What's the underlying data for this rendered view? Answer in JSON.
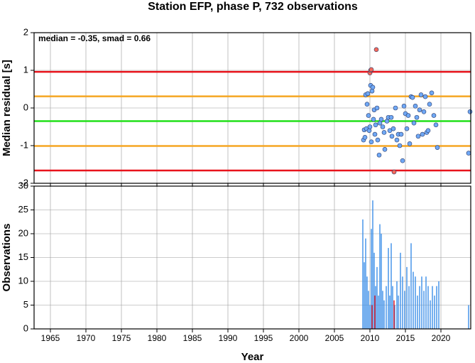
{
  "chart_data": [
    {
      "type": "scatter",
      "title": "Station EFP, phase P, 732 observations",
      "ylabel": "Median residual [s]",
      "annotation": "median = -0.35, smad = 0.66",
      "xlim": [
        1962.7,
        2024.2
      ],
      "xticks": [
        1965,
        1970,
        1975,
        1980,
        1985,
        1990,
        1995,
        2000,
        2005,
        2010,
        2015,
        2020
      ],
      "ylim": [
        -2,
        2
      ],
      "yticks": [
        -2,
        -1,
        0,
        1,
        2
      ],
      "grid": true,
      "hlines": [
        {
          "value": 0.96,
          "color": "#e8141c"
        },
        {
          "value": 0.31,
          "color": "#f5a623"
        },
        {
          "value": -0.35,
          "color": "#22e01a"
        },
        {
          "value": -1.01,
          "color": "#f5a623"
        },
        {
          "value": -1.66,
          "color": "#e8141c"
        }
      ],
      "series": [
        {
          "color": "#6fa8f5",
          "x": [
            2009.1,
            2009.2,
            2009.3,
            2009.4,
            2009.5,
            2009.6,
            2009.7,
            2009.8,
            2009.9,
            2010.0,
            2010.1,
            2010.2,
            2010.3,
            2010.4,
            2010.5,
            2010.6,
            2010.7,
            2010.8,
            2011.0,
            2011.1,
            2011.3,
            2011.4,
            2011.6,
            2011.8,
            2012.0,
            2012.1,
            2012.4,
            2012.6,
            2012.8,
            2013.0,
            2013.1,
            2013.3,
            2013.6,
            2013.8,
            2014.0,
            2014.2,
            2014.4,
            2014.6,
            2014.8,
            2015.0,
            2015.2,
            2015.4,
            2015.6,
            2015.8,
            2016.0,
            2016.2,
            2016.4,
            2016.6,
            2016.8,
            2017.0,
            2017.2,
            2017.4,
            2017.6,
            2017.8,
            2018.0,
            2018.2,
            2018.4,
            2018.7,
            2019.0,
            2019.3,
            2019.5,
            2023.9,
            2024.1
          ],
          "values": [
            -0.85,
            -0.58,
            -0.78,
            0.35,
            -0.55,
            0.1,
            0.38,
            -0.2,
            -0.6,
            -0.5,
            0.6,
            -0.9,
            0.45,
            0.55,
            -0.3,
            -0.05,
            -0.7,
            -0.45,
            0.0,
            -0.85,
            -1.25,
            -0.4,
            -0.3,
            -0.5,
            -0.65,
            -1.1,
            -0.35,
            -0.25,
            -0.6,
            -0.25,
            -0.75,
            -0.55,
            0.0,
            -0.85,
            -0.7,
            -1.0,
            -0.7,
            -1.4,
            0.05,
            -0.15,
            -0.55,
            -0.2,
            -0.95,
            0.3,
            0.28,
            -0.4,
            0.05,
            -0.25,
            -0.75,
            -0.05,
            0.35,
            -0.7,
            -0.1,
            0.3,
            -0.65,
            -0.6,
            0.1,
            0.4,
            -0.2,
            -0.45,
            -1.05,
            -1.2,
            -0.1
          ]
        },
        {
          "color": "#f46a5a",
          "x": [
            2010.0,
            2010.1,
            2010.2,
            2010.9,
            2013.4
          ],
          "values": [
            0.93,
            1.0,
            1.02,
            1.55,
            -1.7
          ]
        }
      ]
    },
    {
      "type": "bar",
      "xlabel": "Year",
      "ylabel": "Observations",
      "xlim": [
        1962.7,
        2024.2
      ],
      "xticks": [
        1965,
        1970,
        1975,
        1980,
        1985,
        1990,
        1995,
        2000,
        2005,
        2010,
        2015,
        2020
      ],
      "ylim": [
        0,
        30
      ],
      "yticks": [
        0,
        5,
        10,
        15,
        20,
        25,
        30
      ],
      "grid": true,
      "series": [
        {
          "color": "#3b8fe8",
          "x": [
            2009.0,
            2009.2,
            2009.4,
            2009.6,
            2009.8,
            2010.0,
            2010.2,
            2010.4,
            2010.6,
            2010.8,
            2011.0,
            2011.2,
            2011.4,
            2011.6,
            2011.8,
            2012.0,
            2012.3,
            2012.6,
            2012.8,
            2013.0,
            2013.2,
            2013.5,
            2013.8,
            2014.0,
            2014.3,
            2014.6,
            2014.9,
            2015.2,
            2015.5,
            2015.8,
            2016.1,
            2016.4,
            2016.7,
            2017.0,
            2017.3,
            2017.6,
            2017.9,
            2018.2,
            2018.5,
            2018.8,
            2019.1,
            2019.4,
            2019.7,
            2023.9
          ],
          "values": [
            23,
            14,
            19,
            11,
            8,
            5,
            21,
            27,
            16,
            9,
            13,
            7,
            22,
            20,
            8,
            6,
            9,
            17,
            7,
            18,
            9,
            5,
            10,
            7,
            16,
            11,
            8,
            13,
            9,
            18,
            12,
            11,
            7,
            9,
            11,
            8,
            11,
            9,
            6,
            9,
            7,
            9,
            10,
            5
          ]
        },
        {
          "color": "#e8141c",
          "x": [
            2010.3,
            2010.7,
            2013.4
          ],
          "values": [
            5,
            7,
            6
          ]
        }
      ]
    }
  ]
}
